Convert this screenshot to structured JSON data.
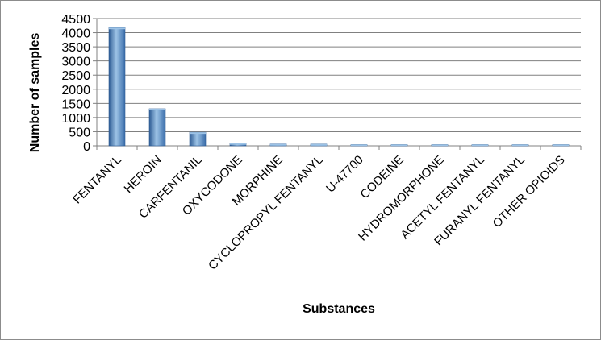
{
  "chart_data": {
    "type": "bar",
    "title": "",
    "xlabel": "Substances",
    "ylabel": "Number of samples",
    "categories": [
      "FENTANYL",
      "HEROIN",
      "CARFENTANIL",
      "OXYCODONE",
      "MORPHINE",
      "CYCLOPROPYL FENTANYL",
      "U-47700",
      "CODEINE",
      "HYDROMORPHONE",
      "ACETYL FENTANYL",
      "FURANYL FENTANYL",
      "OTHER OPIOIDS"
    ],
    "values": [
      4180,
      1310,
      480,
      95,
      65,
      62,
      38,
      25,
      20,
      18,
      8,
      35
    ],
    "ylim": [
      0,
      4500
    ],
    "yticks": [
      0,
      500,
      1000,
      1500,
      2000,
      2500,
      3000,
      3500,
      4000,
      4500
    ],
    "grid": true,
    "legend": "none",
    "colors": {
      "bar": "#4a7ebb",
      "bar_light": "#9dc3e6",
      "bar_dark": "#2e5c94",
      "grid": "#808080"
    }
  }
}
